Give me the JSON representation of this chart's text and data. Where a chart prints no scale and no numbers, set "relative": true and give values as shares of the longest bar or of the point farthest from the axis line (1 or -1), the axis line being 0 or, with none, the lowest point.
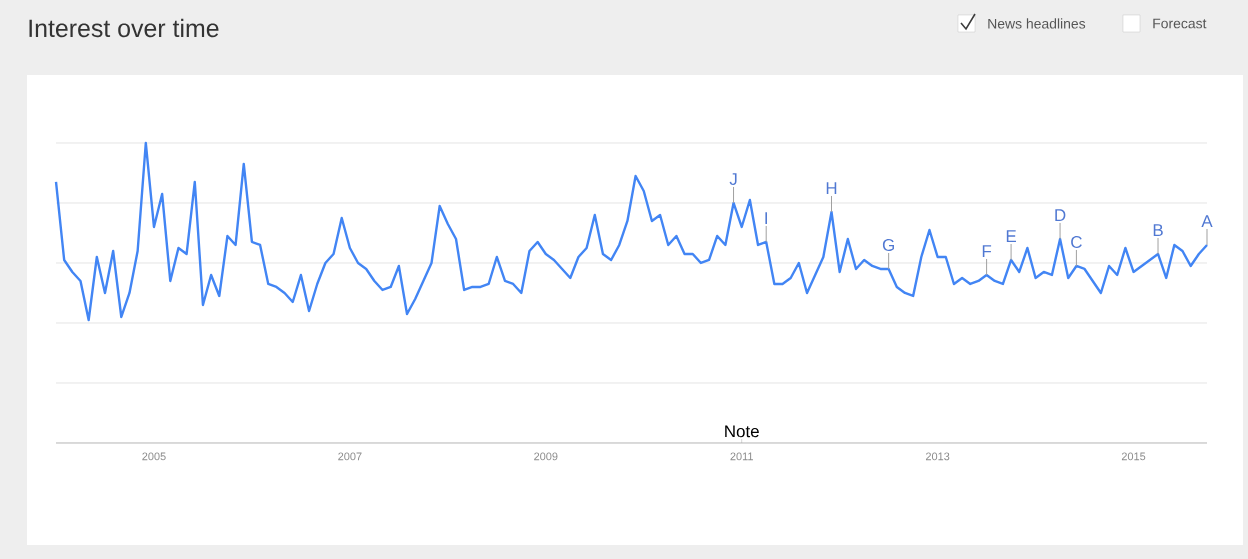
{
  "chart_data": {
    "type": "line",
    "title": "Interest over time",
    "relative": true,
    "grid": "y",
    "marker": "none",
    "line_style": "solid",
    "xlim": [
      "2004-01",
      "2015-10"
    ],
    "xticks": [
      "2005",
      "2007",
      "2009",
      "2011",
      "2013",
      "2015"
    ],
    "x": [
      "2004-01",
      "2004-02",
      "2004-03",
      "2004-04",
      "2004-05",
      "2004-06",
      "2004-07",
      "2004-08",
      "2004-09",
      "2004-10",
      "2004-11",
      "2004-12",
      "2005-01",
      "2005-02",
      "2005-03",
      "2005-04",
      "2005-05",
      "2005-06",
      "2005-07",
      "2005-08",
      "2005-09",
      "2005-10",
      "2005-11",
      "2005-12",
      "2006-01",
      "2006-02",
      "2006-03",
      "2006-04",
      "2006-05",
      "2006-06",
      "2006-07",
      "2006-08",
      "2006-09",
      "2006-10",
      "2006-11",
      "2006-12",
      "2007-01",
      "2007-02",
      "2007-03",
      "2007-04",
      "2007-05",
      "2007-06",
      "2007-07",
      "2007-08",
      "2007-09",
      "2007-10",
      "2007-11",
      "2007-12",
      "2008-01",
      "2008-02",
      "2008-03",
      "2008-04",
      "2008-05",
      "2008-06",
      "2008-07",
      "2008-08",
      "2008-09",
      "2008-10",
      "2008-11",
      "2008-12",
      "2009-01",
      "2009-02",
      "2009-03",
      "2009-04",
      "2009-05",
      "2009-06",
      "2009-07",
      "2009-08",
      "2009-09",
      "2009-10",
      "2009-11",
      "2009-12",
      "2010-01",
      "2010-02",
      "2010-03",
      "2010-04",
      "2010-05",
      "2010-06",
      "2010-07",
      "2010-08",
      "2010-09",
      "2010-10",
      "2010-11",
      "2010-12",
      "2011-01",
      "2011-02",
      "2011-03",
      "2011-04",
      "2011-05",
      "2011-06",
      "2011-07",
      "2011-08",
      "2011-09",
      "2011-10",
      "2011-11",
      "2011-12",
      "2012-01",
      "2012-02",
      "2012-03",
      "2012-04",
      "2012-05",
      "2012-06",
      "2012-07",
      "2012-08",
      "2012-09",
      "2012-10",
      "2012-11",
      "2012-12",
      "2013-01",
      "2013-02",
      "2013-03",
      "2013-04",
      "2013-05",
      "2013-06",
      "2013-07",
      "2013-08",
      "2013-09",
      "2013-10",
      "2013-11",
      "2013-12",
      "2014-01",
      "2014-02",
      "2014-03",
      "2014-04",
      "2014-05",
      "2014-06",
      "2014-07",
      "2014-08",
      "2014-09",
      "2014-10",
      "2014-11",
      "2014-12",
      "2015-01",
      "2015-02",
      "2015-03",
      "2015-04",
      "2015-05",
      "2015-06",
      "2015-07",
      "2015-08",
      "2015-09",
      "2015-10"
    ],
    "series": [
      {
        "color": "#4285f4",
        "values": [
          0.87,
          0.61,
          0.57,
          0.54,
          0.41,
          0.62,
          0.5,
          0.64,
          0.42,
          0.5,
          0.64,
          1.0,
          0.72,
          0.83,
          0.54,
          0.65,
          0.63,
          0.87,
          0.46,
          0.56,
          0.49,
          0.69,
          0.66,
          0.93,
          0.67,
          0.66,
          0.53,
          0.52,
          0.5,
          0.47,
          0.56,
          0.44,
          0.53,
          0.6,
          0.63,
          0.75,
          0.65,
          0.6,
          0.58,
          0.54,
          0.51,
          0.52,
          0.59,
          0.43,
          0.48,
          0.54,
          0.6,
          0.79,
          0.73,
          0.68,
          0.51,
          0.52,
          0.52,
          0.53,
          0.62,
          0.54,
          0.53,
          0.5,
          0.64,
          0.67,
          0.63,
          0.61,
          0.58,
          0.55,
          0.62,
          0.65,
          0.76,
          0.63,
          0.61,
          0.66,
          0.74,
          0.89,
          0.84,
          0.74,
          0.76,
          0.66,
          0.69,
          0.63,
          0.63,
          0.6,
          0.61,
          0.69,
          0.66,
          0.8,
          0.72,
          0.81,
          0.66,
          0.67,
          0.53,
          0.53,
          0.55,
          0.6,
          0.5,
          0.56,
          0.62,
          0.77,
          0.57,
          0.68,
          0.58,
          0.61,
          0.59,
          0.58,
          0.58,
          0.52,
          0.5,
          0.49,
          0.62,
          0.71,
          0.62,
          0.62,
          0.53,
          0.55,
          0.53,
          0.54,
          0.56,
          0.54,
          0.53,
          0.61,
          0.57,
          0.65,
          0.55,
          0.57,
          0.56,
          0.68,
          0.55,
          0.59,
          0.58,
          0.54,
          0.5,
          0.59,
          0.56,
          0.65,
          0.57,
          0.59,
          0.61,
          0.63,
          0.55,
          0.66,
          0.64,
          0.59,
          0.63,
          0.66
        ]
      }
    ],
    "annotations": [
      "News headlines",
      "Forecast",
      {
        "text": "J",
        "x": "2010-12",
        "y": 0.8
      },
      {
        "text": "I",
        "x": "2011-04",
        "y": 0.67
      },
      {
        "text": "H",
        "x": "2011-12",
        "y": 0.77
      },
      {
        "text": "G",
        "x": "2012-07",
        "y": 0.58
      },
      {
        "text": "F",
        "x": "2013-07",
        "y": 0.56
      },
      {
        "text": "E",
        "x": "2013-10",
        "y": 0.61
      },
      {
        "text": "D",
        "x": "2014-04",
        "y": 0.68
      },
      {
        "text": "C",
        "x": "2014-06",
        "y": 0.59
      },
      {
        "text": "B",
        "x": "2015-04",
        "y": 0.63
      },
      {
        "text": "A",
        "x": "2015-10",
        "y": 0.66
      },
      "Note"
    ]
  }
}
